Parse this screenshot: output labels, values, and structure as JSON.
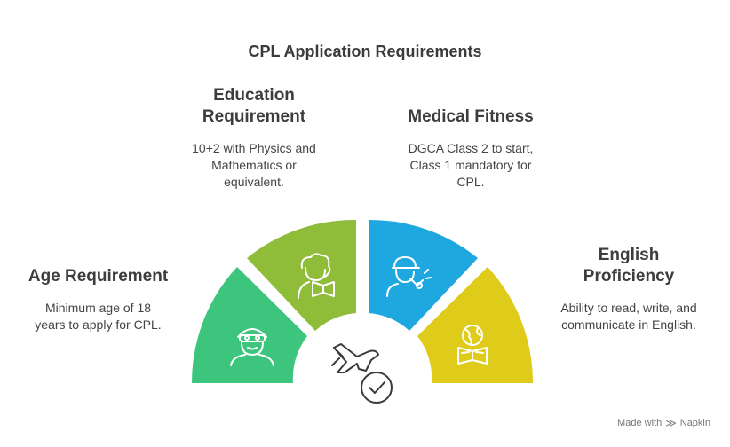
{
  "title": "CPL Application Requirements",
  "sections": {
    "age": {
      "heading": "Age Requirement",
      "description": "Minimum age of 18 years to apply for CPL.",
      "color": "#3dc57e",
      "icon": "pilot-icon"
    },
    "education": {
      "heading": "Education Requirement",
      "description": "10+2 with Physics and Mathematics or equivalent.",
      "color": "#8fbd3a",
      "icon": "reading-person-icon"
    },
    "medical": {
      "heading": "Medical Fitness",
      "description": "DGCA Class 2 to start, Class 1 mandatory for CPL.",
      "color": "#1fa8df",
      "icon": "whistle-person-icon"
    },
    "english": {
      "heading": "English Proficiency",
      "description": "Ability to read, write, and communicate in English.",
      "color": "#dfcb1a",
      "icon": "globe-book-icon"
    }
  },
  "center_icon": "airplane-check-icon",
  "footer": {
    "made_with": "Made with",
    "brand": "Napkin"
  }
}
